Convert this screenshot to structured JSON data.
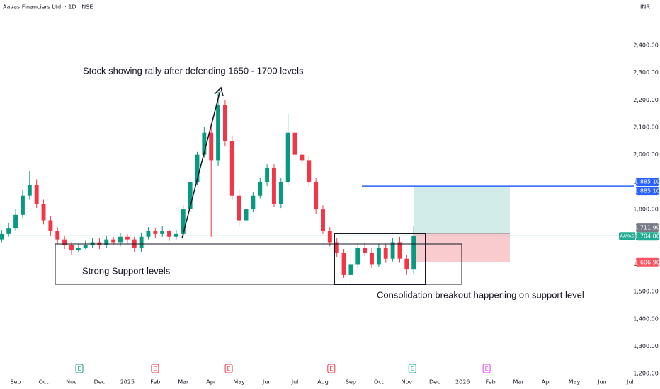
{
  "chart_data": {
    "type": "candlestick",
    "title": "Aavas Financiers Ltd. · 1D · NSE",
    "currency": "INR",
    "up_color": "#089981",
    "down_color": "#f23645",
    "x": [
      -0.5,
      -0.25,
      0,
      0.25,
      0.5,
      0.75,
      1,
      1.25,
      1.5,
      1.75,
      2,
      2.25,
      2.5,
      2.75,
      3,
      3.25,
      3.5,
      3.75,
      4,
      4.25,
      4.5,
      4.75,
      5,
      5.25,
      5.5,
      5.75,
      6,
      6.25,
      6.5,
      6.75,
      7,
      7.25,
      7.5,
      7.75,
      8,
      8.25,
      8.5,
      8.75,
      9,
      9.25,
      9.5,
      9.75,
      10,
      10.25,
      10.5,
      10.75,
      11,
      11.25,
      11.5,
      11.75,
      12,
      12.25,
      12.5,
      12.75,
      13,
      13.25,
      13.5,
      13.75,
      14,
      14.25
    ],
    "open": [
      1690,
      1710,
      1730,
      1780,
      1850,
      1890,
      1820,
      1760,
      1720,
      1690,
      1670,
      1650,
      1660,
      1670,
      1680,
      1670,
      1690,
      1680,
      1700,
      1690,
      1660,
      1700,
      1720,
      1710,
      1720,
      1700,
      1710,
      1800,
      1900,
      2000,
      2080,
      1980,
      2180,
      2050,
      1850,
      1760,
      1800,
      1850,
      1900,
      1950,
      1820,
      1900,
      2080,
      2000,
      1980,
      1900,
      1800,
      1720,
      1680,
      1640,
      1560,
      1600,
      1660,
      1640,
      1600,
      1660,
      1620,
      1680,
      1620,
      1580
    ],
    "high": [
      1725,
      1750,
      1800,
      1870,
      1940,
      1910,
      1835,
      1775,
      1735,
      1705,
      1680,
      1675,
      1685,
      1695,
      1695,
      1705,
      1700,
      1715,
      1710,
      1700,
      1715,
      1735,
      1730,
      1740,
      1725,
      1725,
      1815,
      1915,
      2010,
      2100,
      2100,
      2230,
      2200,
      2070,
      1870,
      1820,
      1865,
      1915,
      1965,
      1965,
      1915,
      2150,
      2095,
      2015,
      1995,
      1915,
      1815,
      1735,
      1695,
      1655,
      1615,
      1675,
      1680,
      1660,
      1675,
      1675,
      1695,
      1700,
      1635,
      1740
    ],
    "low": [
      1680,
      1700,
      1720,
      1770,
      1835,
      1805,
      1745,
      1705,
      1675,
      1655,
      1635,
      1645,
      1655,
      1660,
      1655,
      1660,
      1670,
      1665,
      1675,
      1645,
      1645,
      1690,
      1695,
      1700,
      1685,
      1690,
      1700,
      1790,
      1890,
      1990,
      1700,
      1960,
      2030,
      1835,
      1740,
      1745,
      1790,
      1840,
      1885,
      1810,
      1805,
      1890,
      1985,
      1965,
      1885,
      1785,
      1710,
      1665,
      1625,
      1550,
      1520,
      1585,
      1630,
      1585,
      1590,
      1605,
      1610,
      1605,
      1560,
      1565
    ],
    "close": [
      1710,
      1730,
      1780,
      1850,
      1890,
      1820,
      1760,
      1720,
      1690,
      1670,
      1650,
      1660,
      1670,
      1680,
      1670,
      1690,
      1680,
      1700,
      1690,
      1660,
      1700,
      1720,
      1710,
      1720,
      1700,
      1710,
      1800,
      1900,
      2000,
      2080,
      1980,
      2180,
      2050,
      1850,
      1760,
      1800,
      1850,
      1900,
      1950,
      1820,
      1900,
      2080,
      2000,
      1980,
      1900,
      1800,
      1720,
      1680,
      1640,
      1560,
      1600,
      1660,
      1640,
      1600,
      1660,
      1620,
      1680,
      1620,
      1580,
      1704
    ],
    "xlim": [
      -0.56,
      22.13
    ],
    "ylim": [
      1164,
      2529
    ],
    "yticks": [
      {
        "value": 2400,
        "label": "2,400.00"
      },
      {
        "value": 2300,
        "label": "2,300.00"
      },
      {
        "value": 2200,
        "label": "2,200.00"
      },
      {
        "value": 2100,
        "label": "2,100.00"
      },
      {
        "value": 2000,
        "label": "2,000.00"
      },
      {
        "value": 1900,
        "label": "1,900.00"
      },
      {
        "value": 1800,
        "label": "1,800.00"
      },
      {
        "value": 1700,
        "label": "1,700.00"
      },
      {
        "value": 1600,
        "label": "1,600.00"
      },
      {
        "value": 1500,
        "label": "1,500.00"
      },
      {
        "value": 1400,
        "label": "1,400.00"
      },
      {
        "value": 1300,
        "label": "1,300.00"
      },
      {
        "value": 1200,
        "label": "1,200.00"
      }
    ],
    "xticks": [
      {
        "value": 0,
        "label": "Sep"
      },
      {
        "value": 1,
        "label": "Oct"
      },
      {
        "value": 2,
        "label": "Nov"
      },
      {
        "value": 3,
        "label": "Dec"
      },
      {
        "value": 4,
        "label": "2025"
      },
      {
        "value": 5,
        "label": "Feb"
      },
      {
        "value": 6,
        "label": "Mar"
      },
      {
        "value": 7,
        "label": "Apr"
      },
      {
        "value": 8,
        "label": "May"
      },
      {
        "value": 9,
        "label": "Jun"
      },
      {
        "value": 10,
        "label": "Jul"
      },
      {
        "value": 11,
        "label": "Aug"
      },
      {
        "value": 12,
        "label": "Sep"
      },
      {
        "value": 13,
        "label": "Oct"
      },
      {
        "value": 14,
        "label": "Nov"
      },
      {
        "value": 15,
        "label": "Dec"
      },
      {
        "value": 16,
        "label": "2026"
      },
      {
        "value": 17,
        "label": "Feb"
      },
      {
        "value": 18,
        "label": "Mar"
      },
      {
        "value": 19,
        "label": "Apr"
      },
      {
        "value": 20,
        "label": "May"
      },
      {
        "value": 21,
        "label": "Jun"
      },
      {
        "value": 22,
        "label": "Jul"
      }
    ],
    "last_price": {
      "symbol": "AAVAS",
      "value": 1704,
      "label": "1,704.00",
      "color": "#22ab94"
    },
    "position": {
      "target": {
        "value": 1885.1,
        "label": "1,885.10",
        "color": "#2962ff"
      },
      "entry": {
        "value": 1711.9,
        "label": "1,711.90",
        "color": "#787b86"
      },
      "stop": {
        "value": 1606.9,
        "label": "1,606.90",
        "color": "#f7525f"
      }
    },
    "annotations": [
      "Stock showing rally after defending 1650 - 1700 levels",
      "Strong Support levels",
      "Consolidation breakout happening on support level"
    ],
    "events": [
      {
        "x": 2.28,
        "label": "E",
        "color": "#089981"
      },
      {
        "x": 4.99,
        "label": "E",
        "color": "#f23645"
      },
      {
        "x": 7.63,
        "label": "E",
        "color": "#f23645"
      },
      {
        "x": 11.3,
        "label": "E",
        "color": "#f23645"
      },
      {
        "x": 14.2,
        "label": "E",
        "color": "#22ab94"
      },
      {
        "x": 16.86,
        "label": "E",
        "color": "#e040fb"
      }
    ]
  }
}
